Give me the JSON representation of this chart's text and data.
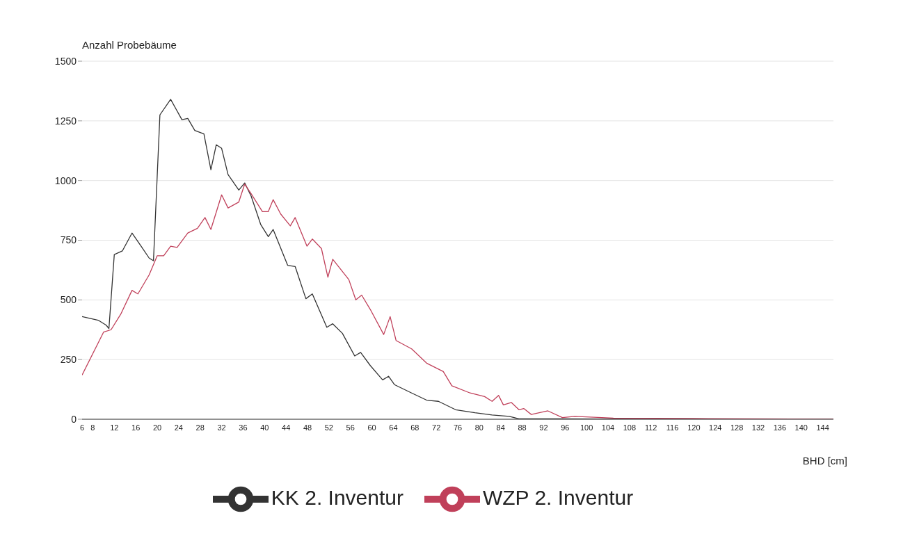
{
  "chart_data": {
    "type": "line",
    "ylabel": "Anzahl Probebäume",
    "xlabel": "BHD [cm]",
    "xlim": [
      6,
      146
    ],
    "xticks": [
      6,
      8,
      12,
      16,
      20,
      24,
      28,
      32,
      36,
      40,
      44,
      48,
      52,
      56,
      60,
      64,
      68,
      72,
      76,
      80,
      84,
      88,
      92,
      96,
      100,
      104,
      108,
      112,
      116,
      120,
      124,
      128,
      132,
      136,
      140,
      144
    ],
    "ylim": [
      0,
      1500
    ],
    "yticks": [
      0,
      250,
      500,
      750,
      1000,
      1250,
      1500
    ],
    "grid": "y",
    "legend": "bottom",
    "marker": "none",
    "line_style": "solid",
    "series": [
      {
        "name": "KK 2. Inventur",
        "color": "#333333",
        "x": [
          6,
          9,
          10.5,
          11,
          12,
          13.5,
          15.3,
          17,
          18.5,
          19.3,
          20.5,
          22.5,
          24.6,
          25.7,
          27,
          28.7,
          30,
          31,
          32,
          33.2,
          35.2,
          36.3,
          37.5,
          39.3,
          40.7,
          41.6,
          44.3,
          45.7,
          47.7,
          48.9,
          51.6,
          52.7,
          54.5,
          56.8,
          57.9,
          59.7,
          62,
          63.1,
          64.2,
          67.4,
          70.2,
          72.4,
          75.6,
          79.2,
          82.4,
          85.6,
          87.4,
          95,
          110,
          146
        ],
        "values": [
          430,
          415,
          394,
          380,
          690,
          705,
          780,
          725,
          675,
          664,
          1275,
          1340,
          1255,
          1260,
          1210,
          1195,
          1045,
          1150,
          1135,
          1025,
          960,
          990,
          935,
          815,
          765,
          795,
          645,
          640,
          505,
          525,
          385,
          400,
          360,
          265,
          280,
          225,
          165,
          180,
          145,
          110,
          80,
          75,
          40,
          27,
          18,
          12,
          2,
          2,
          0,
          0
        ]
      },
      {
        "name": "WZP 2. Inventur",
        "color": "#c0405a",
        "x": [
          6,
          10,
          11.4,
          13.2,
          15.3,
          16.4,
          18.5,
          20,
          21.2,
          22.5,
          23.7,
          25.7,
          27.5,
          28.9,
          30,
          32,
          33.2,
          35.2,
          36.3,
          37.5,
          39.6,
          40.7,
          41.6,
          43,
          44.8,
          45.7,
          47.9,
          48.9,
          50.6,
          51.8,
          52.7,
          55.7,
          57,
          58.1,
          59.7,
          62.2,
          63.4,
          64.5,
          67.4,
          70.2,
          73.3,
          74.9,
          78.3,
          81,
          82.4,
          83.6,
          84.5,
          86,
          87.4,
          88.3,
          89.7,
          92.8,
          95.5,
          97.8,
          105,
          120,
          146
        ],
        "values": [
          185,
          365,
          375,
          440,
          540,
          525,
          605,
          685,
          685,
          725,
          720,
          780,
          800,
          845,
          795,
          940,
          885,
          910,
          985,
          945,
          870,
          870,
          920,
          860,
          810,
          845,
          725,
          755,
          715,
          595,
          670,
          585,
          500,
          520,
          460,
          355,
          430,
          330,
          295,
          235,
          200,
          140,
          110,
          95,
          75,
          100,
          60,
          70,
          40,
          45,
          20,
          35,
          7,
          12,
          5,
          3,
          0
        ]
      }
    ]
  }
}
